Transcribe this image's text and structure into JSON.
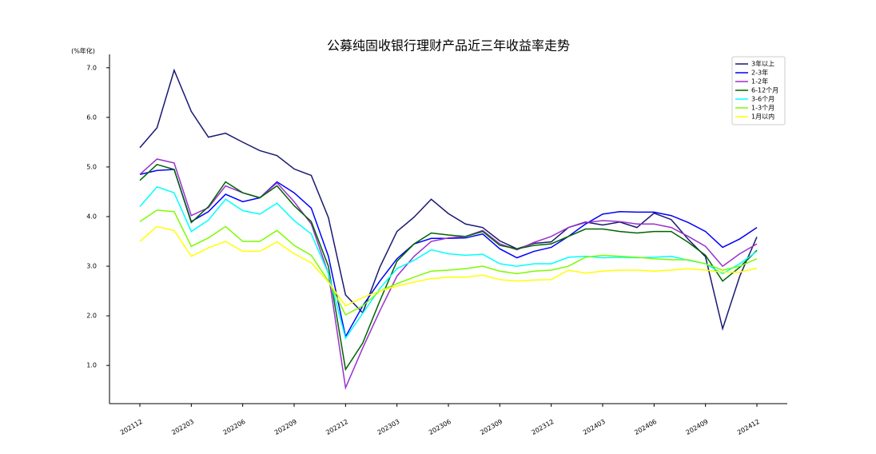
{
  "chart_data": {
    "type": "line",
    "title": "公募纯固收银行理财产品近三年收益率走势",
    "y_label": "(%年化)",
    "categories": [
      "202112",
      null,
      null,
      "202203",
      null,
      null,
      "202206",
      null,
      null,
      "202209",
      null,
      null,
      "202212",
      null,
      null,
      "202303",
      null,
      null,
      "202306",
      null,
      null,
      "202309",
      null,
      null,
      "202312",
      null,
      null,
      "202403",
      null,
      null,
      "202406",
      null,
      null,
      "202409",
      null,
      null,
      "202412"
    ],
    "ylim": [
      0.23,
      7.27
    ],
    "yticks": [
      {
        "value": 1,
        "label": "1.0"
      },
      {
        "value": 2,
        "label": "2.0"
      },
      {
        "value": 3,
        "label": "3.0"
      },
      {
        "value": 4,
        "label": "4.0"
      },
      {
        "value": 5,
        "label": "5.0"
      },
      {
        "value": 6,
        "label": "6.0"
      },
      {
        "value": 7,
        "label": "7.0"
      }
    ],
    "legend": "upper right",
    "series": [
      {
        "name": "3年以上",
        "color": "#191970",
        "values": [
          5.39,
          5.79,
          6.95,
          6.12,
          5.6,
          5.68,
          5.5,
          5.33,
          5.23,
          4.96,
          4.83,
          3.98,
          2.42,
          2.06,
          2.98,
          3.7,
          3.99,
          4.35,
          4.06,
          3.85,
          3.78,
          3.51,
          3.35,
          3.46,
          3.49,
          3.78,
          3.89,
          3.83,
          3.89,
          3.78,
          4.07,
          3.94,
          3.54,
          3.19,
          1.74,
          2.8,
          3.59
        ]
      },
      {
        "name": "2-3年",
        "color": "#0000ff",
        "values": [
          4.85,
          4.93,
          4.95,
          3.9,
          4.1,
          4.45,
          4.3,
          4.38,
          4.7,
          4.48,
          4.17,
          3.2,
          1.58,
          2.2,
          2.7,
          3.15,
          3.45,
          3.56,
          3.56,
          3.57,
          3.65,
          3.35,
          3.17,
          3.3,
          3.38,
          3.6,
          3.85,
          4.05,
          4.1,
          4.09,
          4.09,
          4.02,
          3.88,
          3.7,
          3.38,
          3.55,
          3.78
        ]
      },
      {
        "name": "1-2年",
        "color": "#9932cc",
        "values": [
          4.85,
          5.16,
          5.08,
          4.02,
          4.18,
          4.62,
          4.48,
          4.38,
          4.68,
          4.3,
          3.85,
          2.85,
          0.55,
          1.35,
          2.1,
          2.8,
          3.2,
          3.5,
          3.57,
          3.6,
          3.72,
          3.45,
          3.33,
          3.48,
          3.6,
          3.78,
          3.88,
          3.92,
          3.9,
          3.85,
          3.85,
          3.78,
          3.6,
          3.4,
          3.0,
          3.25,
          3.45
        ]
      },
      {
        "name": "6-12个月",
        "color": "#006400",
        "values": [
          4.73,
          5.05,
          4.95,
          3.88,
          4.2,
          4.7,
          4.48,
          4.38,
          4.62,
          4.22,
          3.9,
          3.0,
          0.92,
          1.45,
          2.3,
          3.1,
          3.45,
          3.67,
          3.63,
          3.6,
          3.7,
          3.42,
          3.35,
          3.42,
          3.45,
          3.6,
          3.75,
          3.75,
          3.7,
          3.67,
          3.7,
          3.7,
          3.48,
          3.22,
          2.7,
          2.98,
          3.32
        ]
      },
      {
        "name": "3-6个月",
        "color": "#00ffff",
        "values": [
          4.2,
          4.6,
          4.48,
          3.7,
          3.93,
          4.35,
          4.12,
          4.05,
          4.27,
          3.92,
          3.65,
          2.85,
          1.55,
          2.05,
          2.55,
          2.95,
          3.12,
          3.33,
          3.25,
          3.22,
          3.24,
          3.05,
          3.0,
          3.05,
          3.05,
          3.18,
          3.2,
          3.17,
          3.18,
          3.17,
          3.18,
          3.2,
          3.12,
          3.05,
          2.85,
          3.05,
          3.3
        ]
      },
      {
        "name": "1-3个月",
        "color": "#7cfc00",
        "values": [
          3.9,
          4.13,
          4.1,
          3.4,
          3.57,
          3.8,
          3.5,
          3.5,
          3.72,
          3.42,
          3.22,
          2.7,
          2.02,
          2.2,
          2.5,
          2.65,
          2.78,
          2.9,
          2.92,
          2.95,
          3.0,
          2.9,
          2.85,
          2.9,
          2.92,
          3.0,
          3.18,
          3.22,
          3.2,
          3.18,
          3.15,
          3.13,
          3.13,
          3.05,
          2.92,
          3.0,
          3.15
        ]
      },
      {
        "name": "1月以内",
        "color": "#ffff00",
        "values": [
          3.5,
          3.8,
          3.72,
          3.2,
          3.37,
          3.5,
          3.3,
          3.3,
          3.49,
          3.25,
          3.07,
          2.68,
          2.2,
          2.37,
          2.5,
          2.6,
          2.68,
          2.75,
          2.78,
          2.78,
          2.82,
          2.73,
          2.7,
          2.72,
          2.73,
          2.92,
          2.86,
          2.9,
          2.92,
          2.92,
          2.9,
          2.92,
          2.95,
          2.92,
          2.88,
          2.88,
          2.96
        ]
      }
    ]
  }
}
